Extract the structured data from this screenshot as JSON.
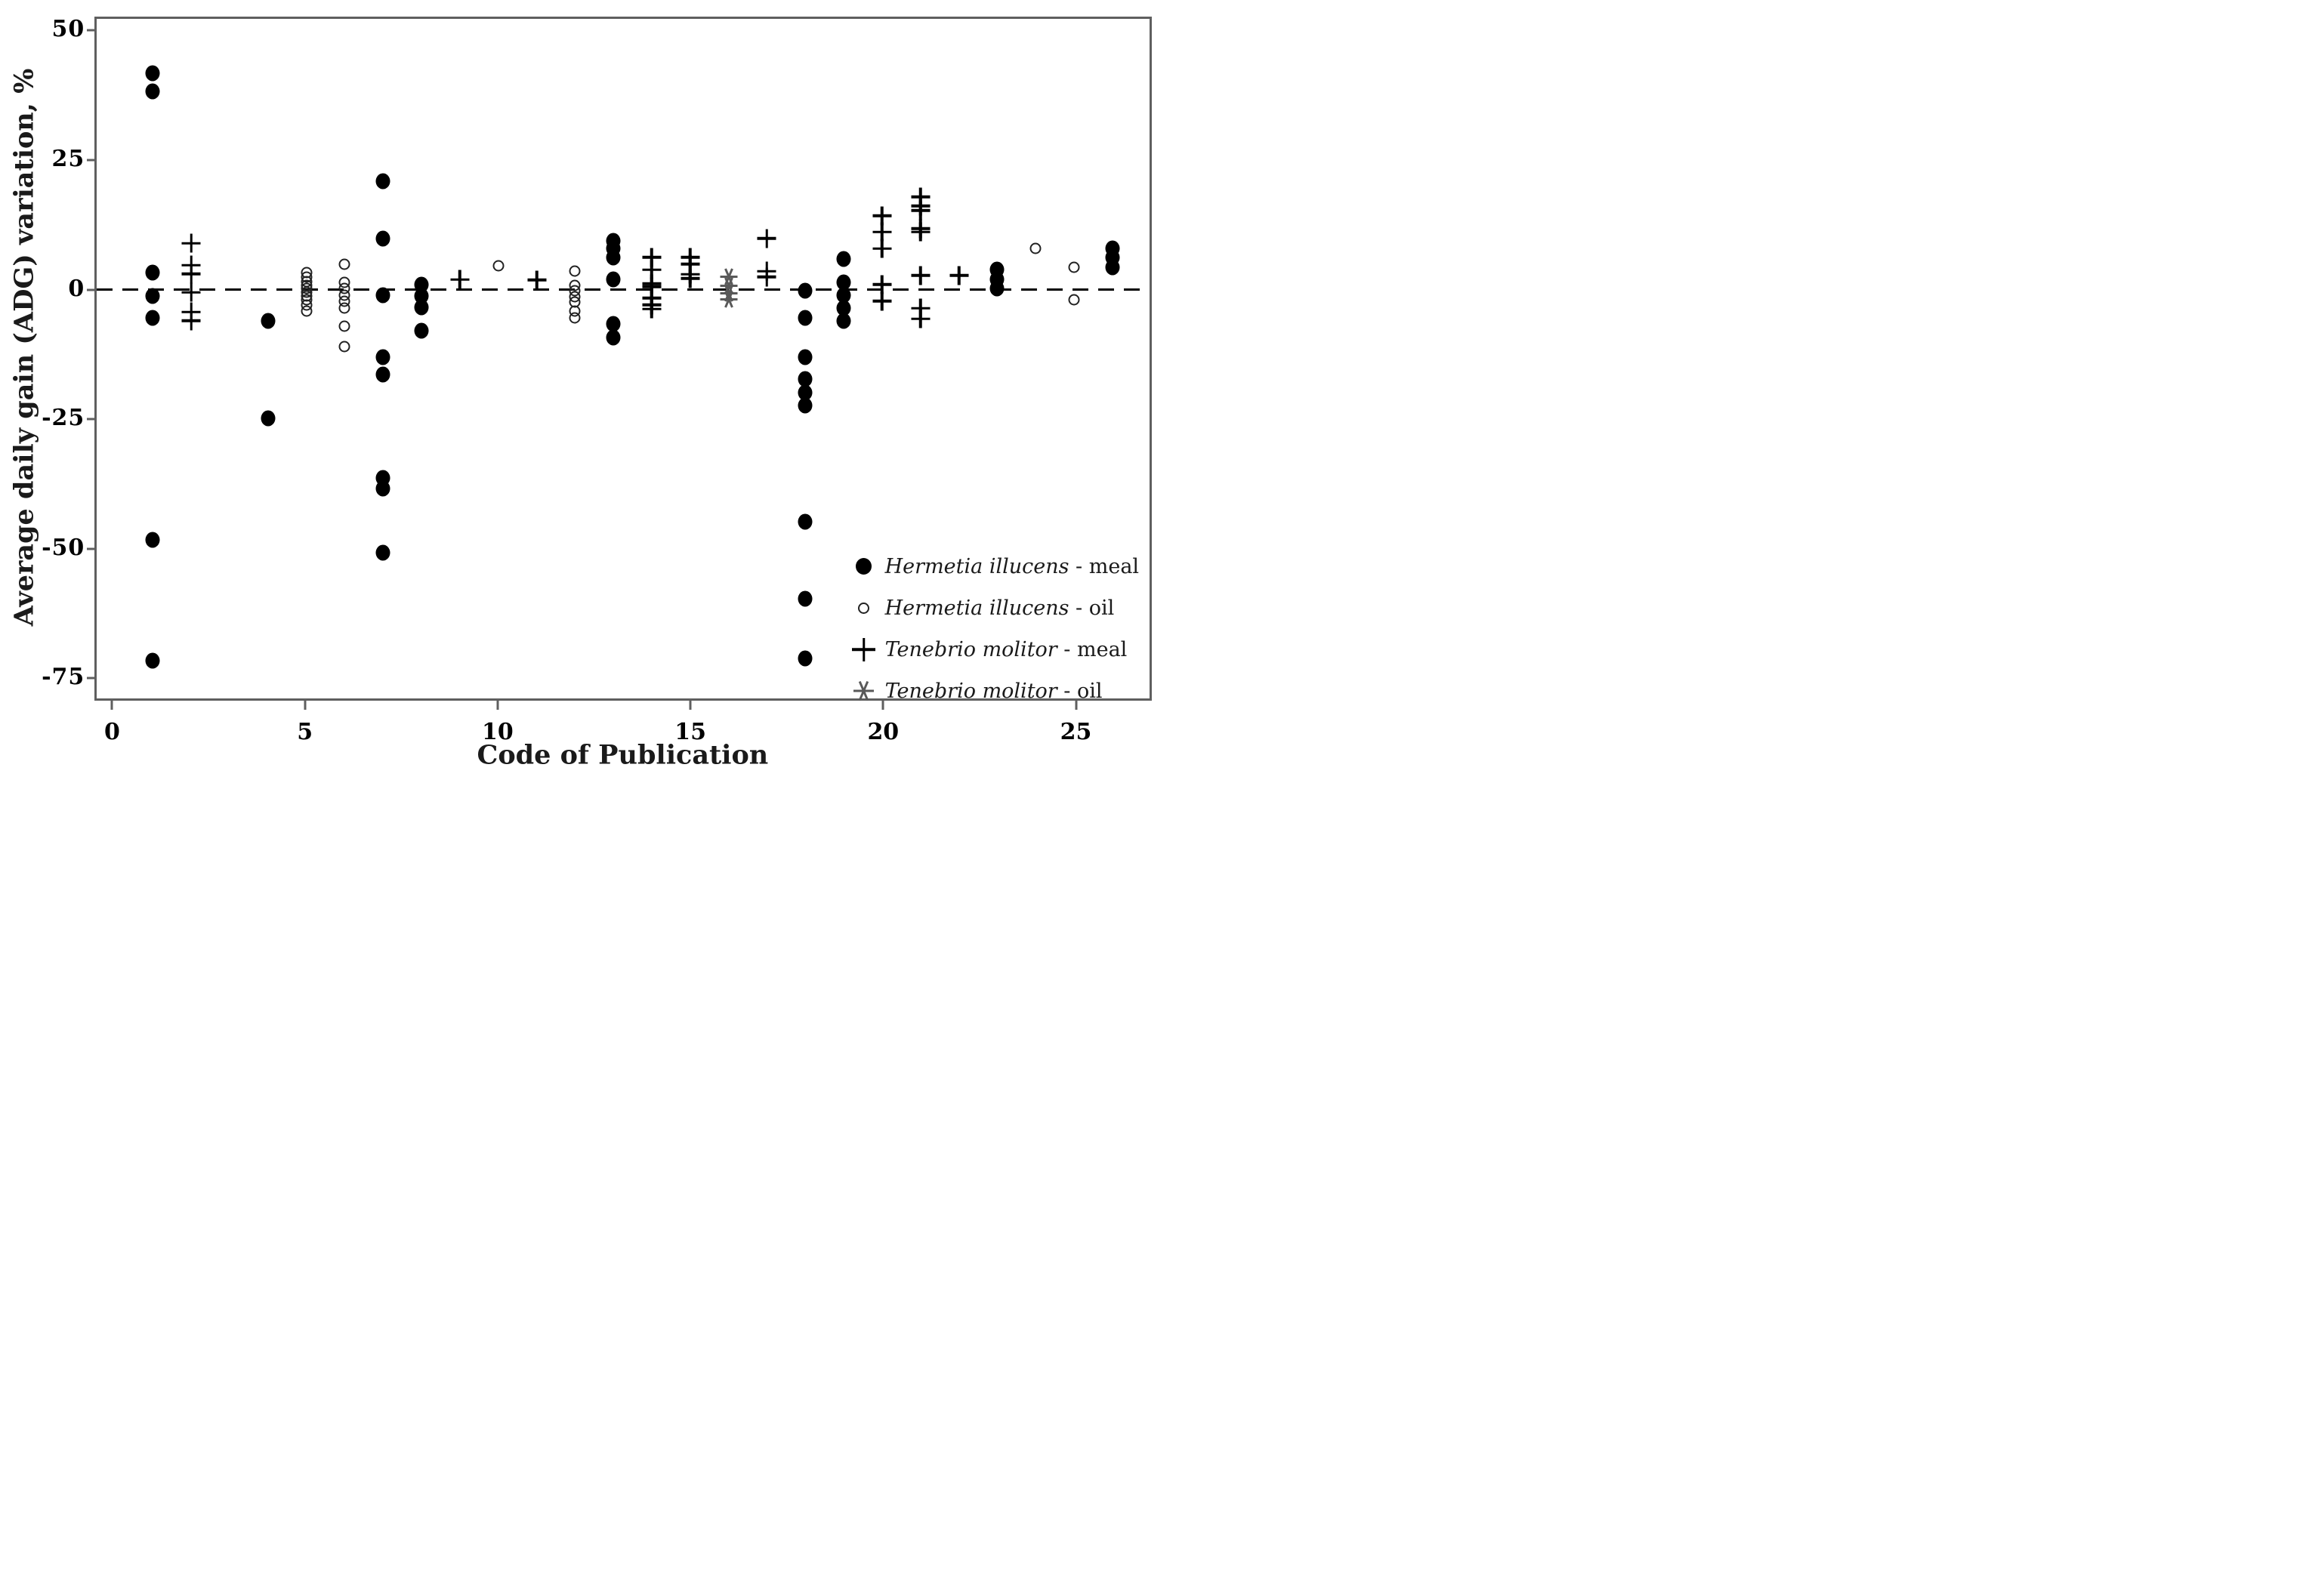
{
  "figure": {
    "x_axis": {
      "title": "Code of Publication",
      "ticks": [
        0,
        5,
        10,
        15,
        20,
        25
      ],
      "range": [
        -0.5,
        27
      ]
    },
    "y_axis": {
      "title": "Average daily gain (ADG) variation, %",
      "ticks": [
        50,
        25,
        0,
        -25,
        -50,
        -75
      ],
      "range": [
        -79,
        53
      ]
    },
    "zero_line": {
      "style": "dashed",
      "y": 0,
      "color": "#000000"
    }
  },
  "legend": {
    "items": [
      {
        "species": "Hermetia illucens",
        "suffix": " - meal",
        "marker": "dot"
      },
      {
        "species": "Hermetia illucens",
        "suffix": " - oil",
        "marker": "circle"
      },
      {
        "species": "Tenebrio molitor",
        "suffix": " - meal",
        "marker": "plus"
      },
      {
        "species": "Tenebrio molitor",
        "suffix": " - oil",
        "marker": "ast"
      }
    ]
  },
  "chart_data": {
    "type": "scatter",
    "xlabel": "Code of Publication",
    "ylabel": "Average daily gain (ADG) variation, %",
    "xlim": [
      -0.5,
      27
    ],
    "ylim": [
      -79,
      53
    ],
    "grid": false,
    "legend_position": "lower right",
    "series": [
      {
        "name": "Hermetia illucens - meal",
        "marker": "dot",
        "color": "#000000",
        "points": [
          {
            "x": 1,
            "y": 42
          },
          {
            "x": 1,
            "y": 38.5
          },
          {
            "x": 1,
            "y": 3.3
          },
          {
            "x": 1,
            "y": -1.2
          },
          {
            "x": 1,
            "y": -5.5
          },
          {
            "x": 1,
            "y": -48.5
          },
          {
            "x": 1,
            "y": -72
          },
          {
            "x": 4,
            "y": -6
          },
          {
            "x": 4,
            "y": -25
          },
          {
            "x": 7,
            "y": 21
          },
          {
            "x": 7,
            "y": 10
          },
          {
            "x": 7,
            "y": -1
          },
          {
            "x": 7,
            "y": -13
          },
          {
            "x": 7,
            "y": -16.5
          },
          {
            "x": 7,
            "y": -36.5
          },
          {
            "x": 7,
            "y": -38.5
          },
          {
            "x": 7,
            "y": -51
          },
          {
            "x": 8,
            "y": 1
          },
          {
            "x": 8,
            "y": -1.2
          },
          {
            "x": 8,
            "y": -3.4
          },
          {
            "x": 8,
            "y": -8
          },
          {
            "x": 13,
            "y": 9.5
          },
          {
            "x": 13,
            "y": 8
          },
          {
            "x": 13,
            "y": 6.3
          },
          {
            "x": 13,
            "y": 2
          },
          {
            "x": 13,
            "y": -6.6
          },
          {
            "x": 13,
            "y": -9.2
          },
          {
            "x": 18,
            "y": -0.2
          },
          {
            "x": 18,
            "y": -5.4
          },
          {
            "x": 18,
            "y": -13
          },
          {
            "x": 18,
            "y": -17.3
          },
          {
            "x": 18,
            "y": -20
          },
          {
            "x": 18,
            "y": -22.4
          },
          {
            "x": 18,
            "y": -45
          },
          {
            "x": 18,
            "y": -60
          },
          {
            "x": 18,
            "y": -71.5
          },
          {
            "x": 19,
            "y": 6
          },
          {
            "x": 19,
            "y": 1.5
          },
          {
            "x": 19,
            "y": -1
          },
          {
            "x": 19,
            "y": -3.5
          },
          {
            "x": 19,
            "y": -6
          },
          {
            "x": 23,
            "y": 4
          },
          {
            "x": 23,
            "y": 2
          },
          {
            "x": 23,
            "y": 0.2
          },
          {
            "x": 26,
            "y": 8
          },
          {
            "x": 26,
            "y": 6.2
          },
          {
            "x": 26,
            "y": 4.4
          }
        ]
      },
      {
        "name": "Hermetia illucens - oil",
        "marker": "circle",
        "color": "#222222",
        "points": [
          {
            "x": 5,
            "y": 3.4
          },
          {
            "x": 5,
            "y": 2.4
          },
          {
            "x": 5,
            "y": 1.6
          },
          {
            "x": 5,
            "y": 0.9
          },
          {
            "x": 5,
            "y": 0.2
          },
          {
            "x": 5,
            "y": -0.5
          },
          {
            "x": 5,
            "y": -1.2
          },
          {
            "x": 5,
            "y": -2
          },
          {
            "x": 5,
            "y": -3
          },
          {
            "x": 5,
            "y": -4.2
          },
          {
            "x": 6,
            "y": 5
          },
          {
            "x": 6,
            "y": 1.5
          },
          {
            "x": 6,
            "y": 0.2
          },
          {
            "x": 6,
            "y": -1
          },
          {
            "x": 6,
            "y": -2.2
          },
          {
            "x": 6,
            "y": -3.6
          },
          {
            "x": 6,
            "y": -7
          },
          {
            "x": 6,
            "y": -11
          },
          {
            "x": 10,
            "y": 4.7
          },
          {
            "x": 12,
            "y": 3.6
          },
          {
            "x": 12,
            "y": 0.8
          },
          {
            "x": 12,
            "y": -0.1
          },
          {
            "x": 12,
            "y": -1.4
          },
          {
            "x": 12,
            "y": -2.4
          },
          {
            "x": 12,
            "y": -4.2
          },
          {
            "x": 12,
            "y": -5.5
          },
          {
            "x": 24,
            "y": 8
          },
          {
            "x": 25,
            "y": 4.3
          },
          {
            "x": 25,
            "y": -2
          }
        ]
      },
      {
        "name": "Tenebrio molitor - meal",
        "marker": "plus",
        "color": "#000000",
        "points": [
          {
            "x": 2,
            "y": 9
          },
          {
            "x": 2,
            "y": 4.8
          },
          {
            "x": 2,
            "y": 3.1
          },
          {
            "x": 2,
            "y": -0.5
          },
          {
            "x": 2,
            "y": -4.3
          },
          {
            "x": 2,
            "y": -6
          },
          {
            "x": 9,
            "y": 2
          },
          {
            "x": 11,
            "y": 1.9
          },
          {
            "x": 14,
            "y": 6.3
          },
          {
            "x": 14,
            "y": 3.9
          },
          {
            "x": 14,
            "y": 1.2
          },
          {
            "x": 14,
            "y": 0.6
          },
          {
            "x": 14,
            "y": -1.6
          },
          {
            "x": 14,
            "y": -2.9
          },
          {
            "x": 14,
            "y": -3.7
          },
          {
            "x": 15,
            "y": 6.3
          },
          {
            "x": 15,
            "y": 5
          },
          {
            "x": 15,
            "y": 3
          },
          {
            "x": 15,
            "y": 2.2
          },
          {
            "x": 17,
            "y": 10
          },
          {
            "x": 17,
            "y": 3.6
          },
          {
            "x": 17,
            "y": 2.5
          },
          {
            "x": 20,
            "y": 14.4
          },
          {
            "x": 20,
            "y": 11.2
          },
          {
            "x": 20,
            "y": 8
          },
          {
            "x": 20,
            "y": 1
          },
          {
            "x": 20,
            "y": -2.2
          },
          {
            "x": 21,
            "y": 18
          },
          {
            "x": 21,
            "y": 16.3
          },
          {
            "x": 21,
            "y": 15.4
          },
          {
            "x": 21,
            "y": 11.9
          },
          {
            "x": 21,
            "y": 11.2
          },
          {
            "x": 21,
            "y": 2.8
          },
          {
            "x": 21,
            "y": -3.6
          },
          {
            "x": 21,
            "y": -5.6
          },
          {
            "x": 22,
            "y": 2.8
          }
        ]
      },
      {
        "name": "Tenebrio molitor - oil",
        "marker": "ast",
        "color": "#595959",
        "points": [
          {
            "x": 16,
            "y": 2.6
          },
          {
            "x": 16,
            "y": 0.8
          },
          {
            "x": 16,
            "y": -0.7
          },
          {
            "x": 16,
            "y": -1.9
          }
        ]
      }
    ]
  }
}
